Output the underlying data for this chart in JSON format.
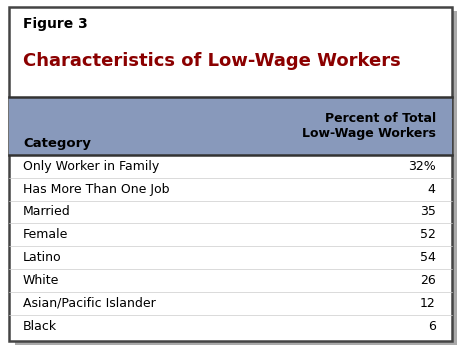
{
  "figure_label": "Figure 3",
  "title": "Characteristics of Low-Wage Workers",
  "title_color": "#8B0000",
  "header_bg_color": "#8899BB",
  "outer_border_color": "#444444",
  "shadow_color": "#aaaaaa",
  "line_color": "#333333",
  "row_line_color": "#cccccc",
  "col1_header": "Category",
  "col2_header": "Percent of Total\nLow-Wage Workers",
  "rows": [
    [
      "Only Worker in Family",
      "32%"
    ],
    [
      "Has More Than One Job",
      "4"
    ],
    [
      "Married",
      "35"
    ],
    [
      "Female",
      "52"
    ],
    [
      "Latino",
      "54"
    ],
    [
      "White",
      "26"
    ],
    [
      "Asian/Pacific Islander",
      "12"
    ],
    [
      "Black",
      "6"
    ]
  ],
  "fig_width": 4.61,
  "fig_height": 3.48,
  "dpi": 100
}
